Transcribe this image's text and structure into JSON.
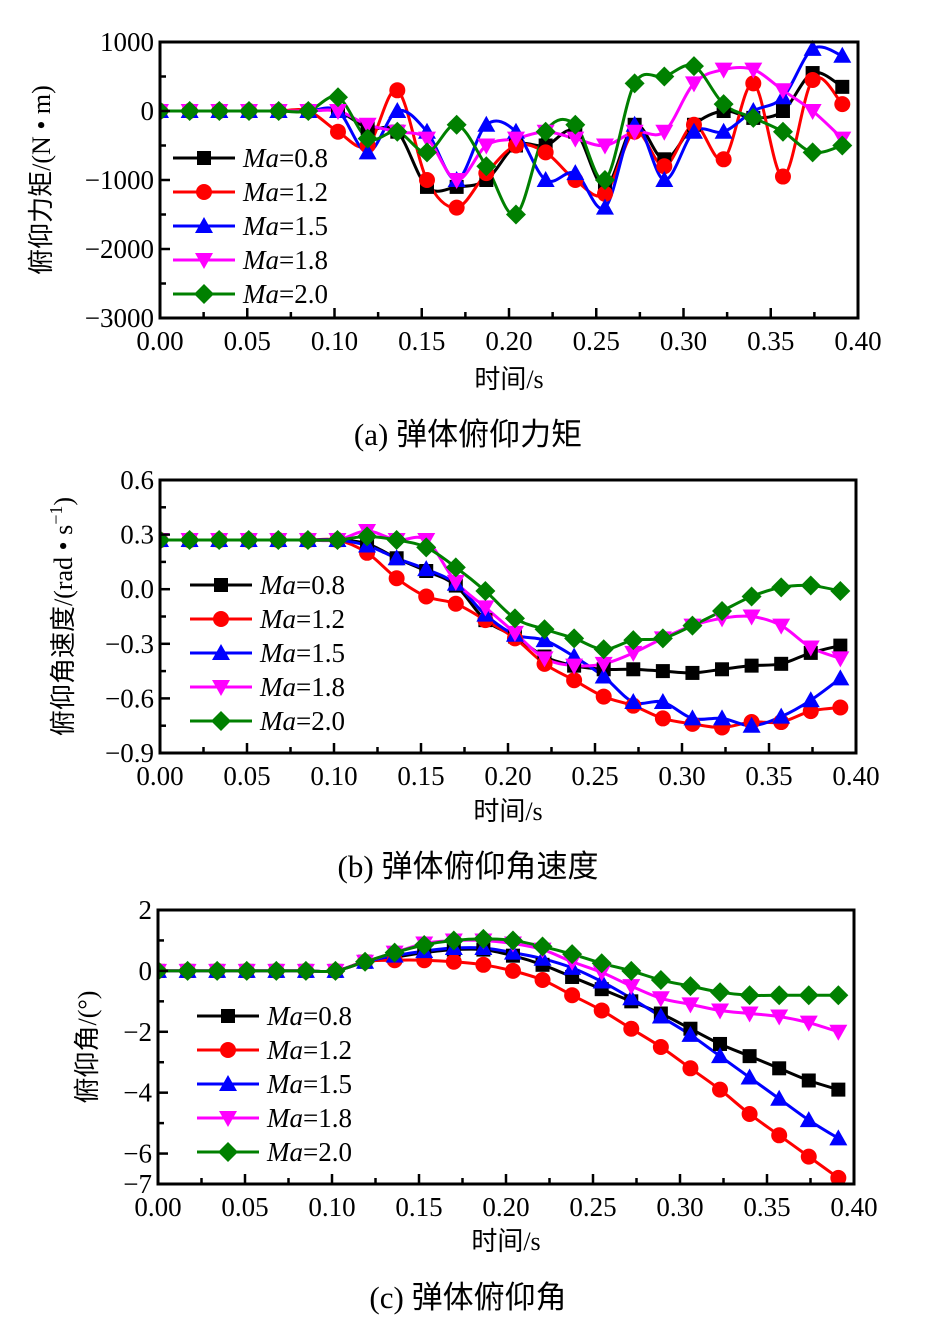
{
  "chart_data": [
    {
      "id": "a",
      "type": "line",
      "caption": "(a)  弹体俯仰力矩",
      "xlabel": "时间/s",
      "ylabel": "俯仰力矩/(N • m)",
      "xlim": [
        0,
        0.4
      ],
      "ylim": [
        -3000,
        1000
      ],
      "xticks": [
        "0.00",
        "0.05",
        "0.10",
        "0.15",
        "0.20",
        "0.25",
        "0.30",
        "0.35",
        "0.40"
      ],
      "yticks": [
        "−3000",
        "−2000",
        "−1000",
        "0",
        "1000"
      ],
      "ytick_values": [
        -3000,
        -2000,
        -1000,
        0,
        1000
      ],
      "legend_position": "left-middle",
      "x": [
        0,
        0.017,
        0.034,
        0.051,
        0.068,
        0.085,
        0.102,
        0.119,
        0.136,
        0.153,
        0.17,
        0.187,
        0.204,
        0.221,
        0.238,
        0.255,
        0.272,
        0.289,
        0.306,
        0.323,
        0.34,
        0.357,
        0.374,
        0.391
      ],
      "series": [
        {
          "name": "Ma=0.8",
          "label_prefix": "Ma",
          "label_suffix": "=0.8",
          "color": "#000000",
          "marker": "square",
          "values": [
            0,
            0,
            0,
            0,
            0,
            0,
            0,
            -250,
            -300,
            -1100,
            -1100,
            -1000,
            -500,
            -500,
            -300,
            -1100,
            -200,
            -700,
            -200,
            0,
            -100,
            0,
            550,
            350
          ]
        },
        {
          "name": "Ma=1.2",
          "label_prefix": "Ma",
          "label_suffix": "=1.2",
          "color": "#ff0000",
          "marker": "circle",
          "values": [
            0,
            0,
            0,
            0,
            0,
            0,
            -300,
            -500,
            300,
            -1000,
            -1400,
            -900,
            -500,
            -600,
            -1000,
            -1200,
            -300,
            -800,
            -200,
            -700,
            400,
            -950,
            450,
            100
          ]
        },
        {
          "name": "Ma=1.5",
          "label_prefix": "Ma",
          "label_suffix": "=1.5",
          "color": "#0000ff",
          "marker": "triangle-up",
          "values": [
            0,
            0,
            0,
            0,
            0,
            0,
            0,
            -600,
            0,
            -300,
            -1000,
            -200,
            -300,
            -1000,
            -900,
            -1400,
            -200,
            -1000,
            -300,
            -300,
            0,
            200,
            900,
            800
          ]
        },
        {
          "name": "Ma=1.8",
          "label_prefix": "Ma",
          "label_suffix": "=1.8",
          "color": "#ff00ff",
          "marker": "triangle-down",
          "values": [
            0,
            0,
            0,
            0,
            0,
            0,
            0,
            -200,
            -300,
            -400,
            -1000,
            -500,
            -400,
            -300,
            -400,
            -500,
            -300,
            -300,
            400,
            600,
            600,
            300,
            0,
            -400
          ]
        },
        {
          "name": "Ma=2.0",
          "label_prefix": "Ma",
          "label_suffix": "=2.0",
          "color": "#008000",
          "marker": "diamond",
          "values": [
            0,
            0,
            0,
            0,
            0,
            0,
            200,
            -400,
            -300,
            -600,
            -200,
            -800,
            -1500,
            -300,
            -200,
            -1000,
            400,
            500,
            650,
            100,
            -100,
            -300,
            -600,
            -500
          ]
        }
      ]
    },
    {
      "id": "b",
      "type": "line",
      "caption": "(b)  弹体俯仰角速度",
      "xlabel": "时间/s",
      "ylabel": "俯仰角速度/(rad • s",
      "ylabel_sup": "−1",
      "ylabel_end": ")",
      "xlim": [
        0,
        0.4
      ],
      "ylim": [
        -0.9,
        0.6
      ],
      "xticks": [
        "0.00",
        "0.05",
        "0.10",
        "0.15",
        "0.20",
        "0.25",
        "0.30",
        "0.35",
        "0.40"
      ],
      "yticks": [
        "−0.9",
        "−0.6",
        "−0.3",
        "0.0",
        "0.3",
        "0.6"
      ],
      "ytick_values": [
        -0.9,
        -0.6,
        -0.3,
        0.0,
        0.3,
        0.6
      ],
      "legend_position": "left-middle",
      "x": [
        0,
        0.017,
        0.034,
        0.051,
        0.068,
        0.085,
        0.102,
        0.119,
        0.136,
        0.153,
        0.17,
        0.187,
        0.204,
        0.221,
        0.238,
        0.255,
        0.272,
        0.289,
        0.306,
        0.323,
        0.34,
        0.357,
        0.374,
        0.391
      ],
      "series": [
        {
          "name": "Ma=0.8",
          "label_prefix": "Ma",
          "label_suffix": "=0.8",
          "color": "#000000",
          "marker": "square",
          "values": [
            0.27,
            0.27,
            0.27,
            0.27,
            0.27,
            0.27,
            0.27,
            0.25,
            0.17,
            0.1,
            0.02,
            -0.17,
            -0.26,
            -0.37,
            -0.42,
            -0.44,
            -0.44,
            -0.45,
            -0.46,
            -0.44,
            -0.42,
            -0.41,
            -0.35,
            -0.31
          ]
        },
        {
          "name": "Ma=1.2",
          "label_prefix": "Ma",
          "label_suffix": "=1.2",
          "color": "#ff0000",
          "marker": "circle",
          "values": [
            0.27,
            0.27,
            0.27,
            0.27,
            0.27,
            0.27,
            0.27,
            0.2,
            0.06,
            -0.04,
            -0.08,
            -0.17,
            -0.27,
            -0.41,
            -0.5,
            -0.59,
            -0.64,
            -0.71,
            -0.74,
            -0.76,
            -0.73,
            -0.73,
            -0.67,
            -0.65
          ]
        },
        {
          "name": "Ma=1.5",
          "label_prefix": "Ma",
          "label_suffix": "=1.5",
          "color": "#0000ff",
          "marker": "triangle-up",
          "values": [
            0.27,
            0.27,
            0.27,
            0.27,
            0.27,
            0.27,
            0.27,
            0.24,
            0.17,
            0.11,
            0.03,
            -0.14,
            -0.25,
            -0.28,
            -0.37,
            -0.48,
            -0.62,
            -0.62,
            -0.71,
            -0.71,
            -0.75,
            -0.7,
            -0.61,
            -0.49
          ]
        },
        {
          "name": "Ma=1.8",
          "label_prefix": "Ma",
          "label_suffix": "=1.8",
          "color": "#ff00ff",
          "marker": "triangle-down",
          "values": [
            0.27,
            0.27,
            0.27,
            0.27,
            0.27,
            0.27,
            0.27,
            0.32,
            0.27,
            0.27,
            0.04,
            -0.1,
            -0.24,
            -0.38,
            -0.42,
            -0.41,
            -0.35,
            -0.27,
            -0.2,
            -0.16,
            -0.15,
            -0.2,
            -0.32,
            -0.38
          ]
        },
        {
          "name": "Ma=2.0",
          "label_prefix": "Ma",
          "label_suffix": "=2.0",
          "color": "#008000",
          "marker": "diamond",
          "values": [
            0.27,
            0.27,
            0.27,
            0.27,
            0.27,
            0.27,
            0.27,
            0.29,
            0.27,
            0.23,
            0.12,
            -0.01,
            -0.16,
            -0.22,
            -0.27,
            -0.33,
            -0.28,
            -0.27,
            -0.2,
            -0.12,
            -0.04,
            0.01,
            0.02,
            -0.01
          ]
        }
      ]
    },
    {
      "id": "c",
      "type": "line",
      "caption": "(c)  弹体俯仰角",
      "xlabel": "时间/s",
      "ylabel": "俯仰角/(°)",
      "xlim": [
        0,
        0.4
      ],
      "ylim": [
        -7,
        2
      ],
      "xticks": [
        "0.00",
        "0.05",
        "0.10",
        "0.15",
        "0.20",
        "0.25",
        "0.30",
        "0.35",
        "0.40"
      ],
      "yticks": [
        "−7",
        "−6",
        "−4",
        "−2",
        "0",
        "2"
      ],
      "ytick_values": [
        -7,
        -6,
        -4,
        -2,
        0,
        2
      ],
      "legend_position": "left-middle",
      "x": [
        0,
        0.017,
        0.034,
        0.051,
        0.068,
        0.085,
        0.102,
        0.119,
        0.136,
        0.153,
        0.17,
        0.187,
        0.204,
        0.221,
        0.238,
        0.255,
        0.272,
        0.289,
        0.306,
        0.323,
        0.34,
        0.357,
        0.374,
        0.391
      ],
      "series": [
        {
          "name": "Ma=0.8",
          "label_prefix": "Ma",
          "label_suffix": "=0.8",
          "color": "#000000",
          "marker": "square",
          "values": [
            0,
            0,
            0,
            0,
            0,
            0,
            0,
            0.3,
            0.45,
            0.6,
            0.7,
            0.7,
            0.5,
            0.2,
            -0.2,
            -0.6,
            -1.0,
            -1.4,
            -1.9,
            -2.4,
            -2.8,
            -3.2,
            -3.6,
            -3.9
          ]
        },
        {
          "name": "Ma=1.2",
          "label_prefix": "Ma",
          "label_suffix": "=1.2",
          "color": "#ff0000",
          "marker": "circle",
          "values": [
            0,
            0,
            0,
            0,
            0,
            0,
            0,
            0.3,
            0.35,
            0.35,
            0.3,
            0.2,
            0.0,
            -0.3,
            -0.8,
            -1.3,
            -1.9,
            -2.5,
            -3.2,
            -3.9,
            -4.7,
            -5.4,
            -6.1,
            -6.8
          ]
        },
        {
          "name": "Ma=1.5",
          "label_prefix": "Ma",
          "label_suffix": "=1.5",
          "color": "#0000ff",
          "marker": "triangle-up",
          "values": [
            0,
            0,
            0,
            0,
            0,
            0,
            0,
            0.3,
            0.5,
            0.65,
            0.75,
            0.75,
            0.6,
            0.4,
            0.1,
            -0.35,
            -0.9,
            -1.5,
            -2.1,
            -2.8,
            -3.5,
            -4.2,
            -4.9,
            -5.5
          ]
        },
        {
          "name": "Ma=1.8",
          "label_prefix": "Ma",
          "label_suffix": "=1.8",
          "color": "#ff00ff",
          "marker": "triangle-down",
          "values": [
            0,
            0,
            0,
            0,
            0,
            0,
            0,
            0.3,
            0.6,
            0.9,
            1.0,
            1.0,
            0.9,
            0.7,
            0.3,
            -0.05,
            -0.5,
            -0.9,
            -1.1,
            -1.3,
            -1.4,
            -1.5,
            -1.7,
            -2.0
          ]
        },
        {
          "name": "Ma=2.0",
          "label_prefix": "Ma",
          "label_suffix": "=2.0",
          "color": "#008000",
          "marker": "diamond",
          "values": [
            0,
            0,
            0,
            0,
            0,
            0,
            0,
            0.3,
            0.6,
            0.85,
            1.0,
            1.05,
            1.0,
            0.8,
            0.55,
            0.25,
            0.0,
            -0.3,
            -0.5,
            -0.7,
            -0.8,
            -0.8,
            -0.8,
            -0.8
          ]
        }
      ]
    }
  ]
}
